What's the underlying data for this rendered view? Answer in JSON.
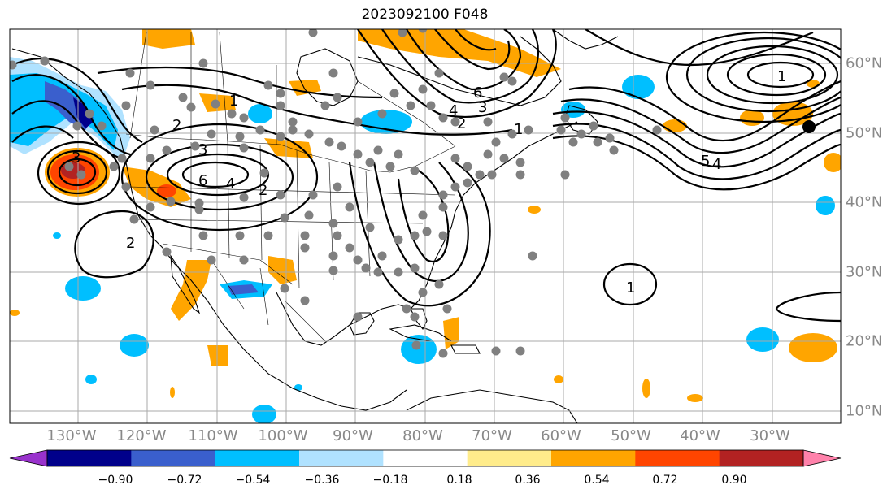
{
  "title": "2023092100 F048",
  "lon_labels": [
    "130°W",
    "120°W",
    "110°W",
    "100°W",
    "90°W",
    "80°W",
    "70°W",
    "60°W",
    "50°W",
    "40°W",
    "30°W"
  ],
  "lat_labels": [
    "60°N",
    "50°N",
    "40°N",
    "30°N",
    "20°N",
    "10°N"
  ],
  "contour_labels": [
    "1",
    "2",
    "3",
    "4",
    "5",
    "6"
  ],
  "colorbar": {
    "ticks": [
      "−0.90",
      "−0.72",
      "−0.54",
      "−0.36",
      "−0.18",
      "0.18",
      "0.36",
      "0.54",
      "0.72",
      "0.90"
    ],
    "colors": [
      "#9932cc",
      "#00008b",
      "#3a5fcd",
      "#00bfff",
      "#b0e2ff",
      "#ffffff",
      "#ffec8b",
      "#ffa500",
      "#ff4500",
      "#b22222",
      "#ff82ab"
    ]
  },
  "shading_colors": {
    "light_blue": "#b0e2ff",
    "blue": "#00bfff",
    "royal": "#3a5fcd",
    "navy": "#00008b",
    "purple": "#9932cc",
    "yellow": "#ffec8b",
    "orange": "#ffa500",
    "red": "#ff4500",
    "darkred": "#b22222"
  },
  "observation_marker_color": "#808080",
  "highlight_marker_color": "#000000"
}
